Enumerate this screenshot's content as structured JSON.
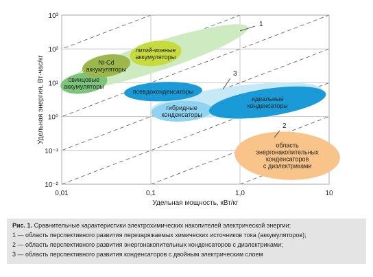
{
  "chart_data": {
    "type": "region",
    "xlabel": "Удельная мощность, кВт/кг",
    "ylabel": "Удельная энергия, Вт·час/кг",
    "log": true,
    "grid": true,
    "xlim": [
      0.01,
      10
    ],
    "ylim": [
      0.01,
      1000
    ],
    "xticks": [
      {
        "value": 0.01,
        "label": "0,01"
      },
      {
        "value": 0.1,
        "label": "0,1"
      },
      {
        "value": 1,
        "label": "1,0"
      },
      10
    ],
    "yticks": [
      {
        "value": 0.01,
        "label": "10⁻²"
      },
      {
        "value": 0.1,
        "label": "10⁻¹"
      },
      {
        "value": 1,
        "label": "10⁰"
      },
      {
        "value": 10,
        "label": "10¹"
      },
      {
        "value": 100,
        "label": "10²"
      },
      {
        "value": 1000,
        "label": "10³"
      }
    ],
    "regions": [
      {
        "name": "1",
        "x": [
          0.011,
          1.1
        ],
        "y": [
          8,
          400
        ],
        "color": "#cdeac0"
      },
      {
        "name": "3",
        "x": [
          0.11,
          7.5
        ],
        "y": [
          1.5,
          6
        ],
        "color": "#c6e9f7"
      },
      {
        "name": "2",
        "label": [
          "область",
          "энергонакопительных",
          "конденсаторов",
          "с диэлектриками"
        ],
        "x": [
          1.05,
          11
        ],
        "y": [
          0.08,
          0.06
        ],
        "color": "#f8c48a"
      },
      {
        "label": [
          "свинцовые",
          "аккумуляторы"
        ],
        "x": [
          0.0105,
          0.03
        ],
        "y": [
          8,
          12
        ],
        "color": "#7cc47c"
      },
      {
        "label": [
          "Ni-Cd",
          "аккумуляторы"
        ],
        "x": [
          0.0185,
          0.054
        ],
        "y": [
          25,
          40
        ],
        "color": "#9cb84a"
      },
      {
        "label": [
          "литий-ионные",
          "аккумуляторы"
        ],
        "x": [
          0.064,
          0.2
        ],
        "y": [
          60,
          90
        ],
        "color": "#c7dc3c"
      },
      {
        "label": [
          "псевдоконденсаторы"
        ],
        "x": [
          0.054,
          0.35
        ],
        "y": [
          5,
          6
        ],
        "color": "#1a9ad6"
      },
      {
        "label": [
          "гибридные",
          "конденсаторы"
        ],
        "x": [
          0.11,
          0.45
        ],
        "y": [
          1.3,
          1.6
        ],
        "color": "#8fd3f0"
      },
      {
        "label": [
          "идеальные",
          "конденсаторы"
        ],
        "x": [
          0.5,
          8.3
        ],
        "y": [
          1.5,
          4.5
        ],
        "color": "#1a9ad6"
      }
    ]
  },
  "caption": {
    "figure": "Рис. 1.",
    "title": " Сравнительные характеристики электрохимических накопителей электрической энергии:",
    "items": [
      "1 — область перспективного развития перезаряжаемых химических источников тока (аккумуляторов);",
      "2 — область перспективного развития энергонакопительных конденсаторов с диэлектриками;",
      "3 — область перспективного развития конденсаторов с двойным электрическим слоем"
    ]
  }
}
